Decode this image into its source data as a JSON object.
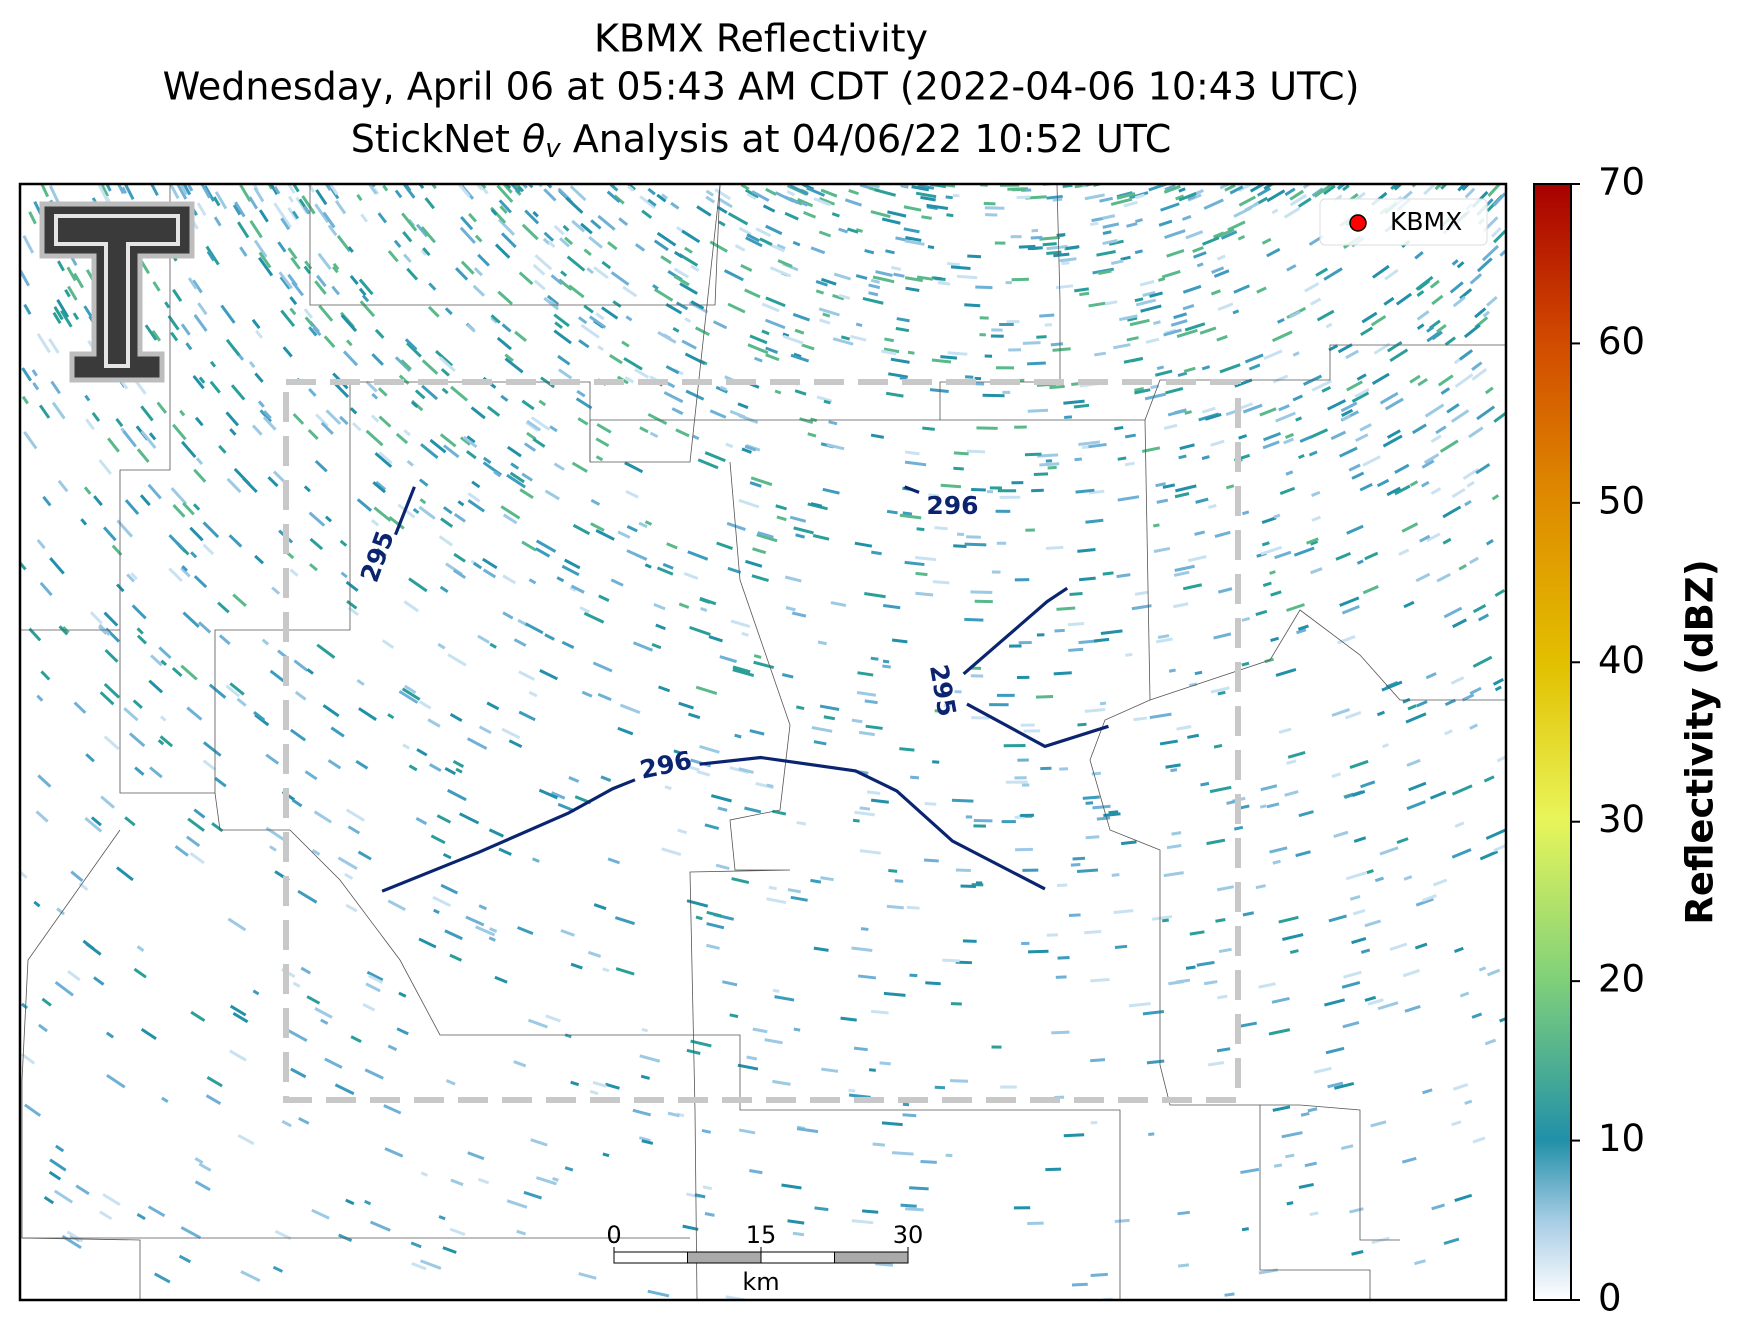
{
  "header": {
    "title": "KBMX Reflectivity",
    "subtitle": "Wednesday, April 06 at 05:43 AM CDT (2022-04-06 10:43 UTC)",
    "analysis": {
      "prefix": "StickNet",
      "symbol": "θ",
      "subscript": "v",
      "suffix": "Analysis at 04/06/22 10:52 UTC"
    }
  },
  "legend": {
    "label": "KBMX",
    "color": "#ff0000"
  },
  "contours": [
    {
      "level": 295,
      "color": "#0b2470"
    },
    {
      "level": 296,
      "color": "#0b2470"
    },
    {
      "level": 295,
      "color": "#0b2470"
    },
    {
      "level": 296,
      "color": "#0b2470"
    }
  ],
  "scale_bar": {
    "ticks": [
      0,
      15,
      30
    ],
    "unit": "km"
  },
  "colorbar": {
    "label": "Reflectivity (dBZ)",
    "lim": [
      0,
      70
    ],
    "ticks": [
      0,
      10,
      20,
      30,
      40,
      50,
      60,
      70
    ]
  }
}
